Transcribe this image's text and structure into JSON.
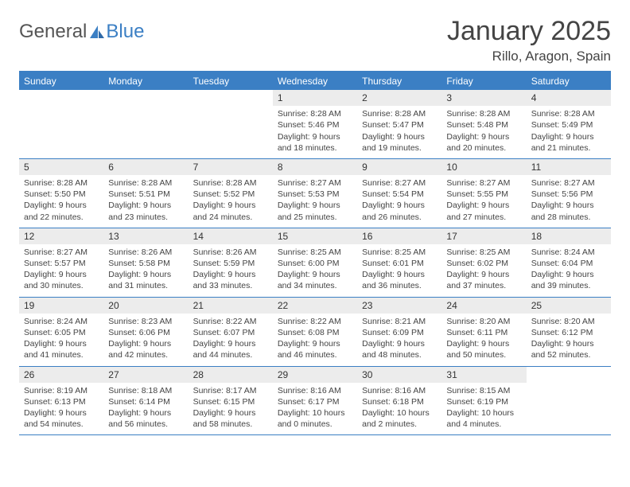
{
  "logo": {
    "general": "General",
    "blue": "Blue"
  },
  "title": "January 2025",
  "location": "Rillo, Aragon, Spain",
  "colors": {
    "accent": "#3b7fc4",
    "dayBarBg": "#ececec",
    "text": "#3a3a3a",
    "bg": "#ffffff"
  },
  "dayNames": [
    "Sunday",
    "Monday",
    "Tuesday",
    "Wednesday",
    "Thursday",
    "Friday",
    "Saturday"
  ],
  "weeks": [
    [
      {
        "n": ""
      },
      {
        "n": ""
      },
      {
        "n": ""
      },
      {
        "n": "1",
        "sr": "8:28 AM",
        "ss": "5:46 PM",
        "dlh": "9",
        "dlm": "18"
      },
      {
        "n": "2",
        "sr": "8:28 AM",
        "ss": "5:47 PM",
        "dlh": "9",
        "dlm": "19"
      },
      {
        "n": "3",
        "sr": "8:28 AM",
        "ss": "5:48 PM",
        "dlh": "9",
        "dlm": "20"
      },
      {
        "n": "4",
        "sr": "8:28 AM",
        "ss": "5:49 PM",
        "dlh": "9",
        "dlm": "21"
      }
    ],
    [
      {
        "n": "5",
        "sr": "8:28 AM",
        "ss": "5:50 PM",
        "dlh": "9",
        "dlm": "22"
      },
      {
        "n": "6",
        "sr": "8:28 AM",
        "ss": "5:51 PM",
        "dlh": "9",
        "dlm": "23"
      },
      {
        "n": "7",
        "sr": "8:28 AM",
        "ss": "5:52 PM",
        "dlh": "9",
        "dlm": "24"
      },
      {
        "n": "8",
        "sr": "8:27 AM",
        "ss": "5:53 PM",
        "dlh": "9",
        "dlm": "25"
      },
      {
        "n": "9",
        "sr": "8:27 AM",
        "ss": "5:54 PM",
        "dlh": "9",
        "dlm": "26"
      },
      {
        "n": "10",
        "sr": "8:27 AM",
        "ss": "5:55 PM",
        "dlh": "9",
        "dlm": "27"
      },
      {
        "n": "11",
        "sr": "8:27 AM",
        "ss": "5:56 PM",
        "dlh": "9",
        "dlm": "28"
      }
    ],
    [
      {
        "n": "12",
        "sr": "8:27 AM",
        "ss": "5:57 PM",
        "dlh": "9",
        "dlm": "30"
      },
      {
        "n": "13",
        "sr": "8:26 AM",
        "ss": "5:58 PM",
        "dlh": "9",
        "dlm": "31"
      },
      {
        "n": "14",
        "sr": "8:26 AM",
        "ss": "5:59 PM",
        "dlh": "9",
        "dlm": "33"
      },
      {
        "n": "15",
        "sr": "8:25 AM",
        "ss": "6:00 PM",
        "dlh": "9",
        "dlm": "34"
      },
      {
        "n": "16",
        "sr": "8:25 AM",
        "ss": "6:01 PM",
        "dlh": "9",
        "dlm": "36"
      },
      {
        "n": "17",
        "sr": "8:25 AM",
        "ss": "6:02 PM",
        "dlh": "9",
        "dlm": "37"
      },
      {
        "n": "18",
        "sr": "8:24 AM",
        "ss": "6:04 PM",
        "dlh": "9",
        "dlm": "39"
      }
    ],
    [
      {
        "n": "19",
        "sr": "8:24 AM",
        "ss": "6:05 PM",
        "dlh": "9",
        "dlm": "41"
      },
      {
        "n": "20",
        "sr": "8:23 AM",
        "ss": "6:06 PM",
        "dlh": "9",
        "dlm": "42"
      },
      {
        "n": "21",
        "sr": "8:22 AM",
        "ss": "6:07 PM",
        "dlh": "9",
        "dlm": "44"
      },
      {
        "n": "22",
        "sr": "8:22 AM",
        "ss": "6:08 PM",
        "dlh": "9",
        "dlm": "46"
      },
      {
        "n": "23",
        "sr": "8:21 AM",
        "ss": "6:09 PM",
        "dlh": "9",
        "dlm": "48"
      },
      {
        "n": "24",
        "sr": "8:20 AM",
        "ss": "6:11 PM",
        "dlh": "9",
        "dlm": "50"
      },
      {
        "n": "25",
        "sr": "8:20 AM",
        "ss": "6:12 PM",
        "dlh": "9",
        "dlm": "52"
      }
    ],
    [
      {
        "n": "26",
        "sr": "8:19 AM",
        "ss": "6:13 PM",
        "dlh": "9",
        "dlm": "54"
      },
      {
        "n": "27",
        "sr": "8:18 AM",
        "ss": "6:14 PM",
        "dlh": "9",
        "dlm": "56"
      },
      {
        "n": "28",
        "sr": "8:17 AM",
        "ss": "6:15 PM",
        "dlh": "9",
        "dlm": "58"
      },
      {
        "n": "29",
        "sr": "8:16 AM",
        "ss": "6:17 PM",
        "dlh": "10",
        "dlm": "0"
      },
      {
        "n": "30",
        "sr": "8:16 AM",
        "ss": "6:18 PM",
        "dlh": "10",
        "dlm": "2"
      },
      {
        "n": "31",
        "sr": "8:15 AM",
        "ss": "6:19 PM",
        "dlh": "10",
        "dlm": "4"
      },
      {
        "n": ""
      }
    ]
  ],
  "labels": {
    "sunrise": "Sunrise: ",
    "sunset": "Sunset: ",
    "daylightPrefix": "Daylight: ",
    "hoursWord": " hours",
    "andWord": "and ",
    "minutesWord": " minutes."
  }
}
